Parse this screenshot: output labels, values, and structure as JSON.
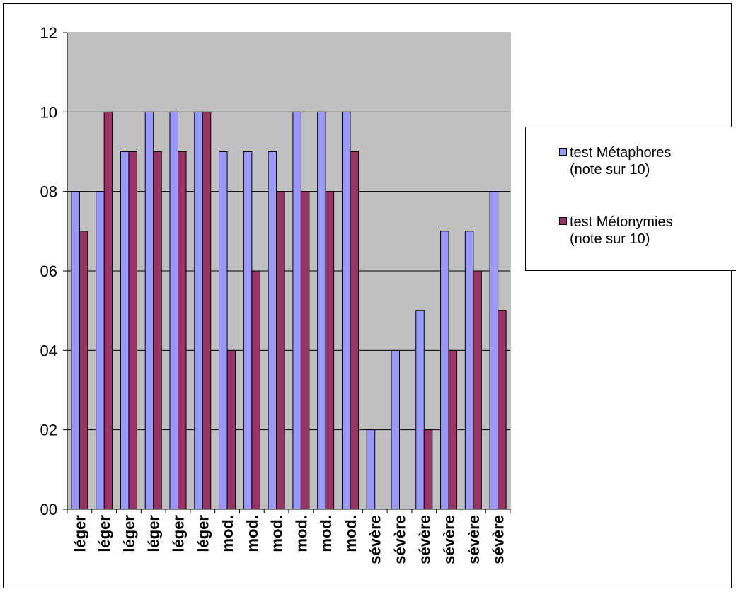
{
  "chart_data": {
    "type": "bar",
    "categories": [
      "léger",
      "léger",
      "léger",
      "léger",
      "léger",
      "léger",
      "mod.",
      "mod.",
      "mod.",
      "mod.",
      "mod.",
      "mod.",
      "sévère",
      "sévère",
      "sévère",
      "sévère",
      "sévère",
      "sévère"
    ],
    "series": [
      {
        "name": "test Métaphores\n(note sur 10)",
        "color": "#9999ff",
        "values": [
          8,
          8,
          9,
          10,
          10,
          10,
          9,
          9,
          9,
          10,
          10,
          10,
          2,
          4,
          5,
          7,
          7,
          8
        ]
      },
      {
        "name": "test Métonymies\n(note sur 10)",
        "color": "#993366",
        "values": [
          7,
          10,
          9,
          9,
          9,
          10,
          4,
          6,
          8,
          8,
          8,
          9,
          0,
          0,
          2,
          4,
          6,
          5
        ]
      }
    ],
    "y_tick_labels": [
      "00",
      "02",
      "04",
      "06",
      "08",
      "10",
      "12"
    ],
    "ylim": [
      0,
      12
    ],
    "grid": true,
    "plot_background": "#c0c0c0",
    "legend_position": "right"
  }
}
